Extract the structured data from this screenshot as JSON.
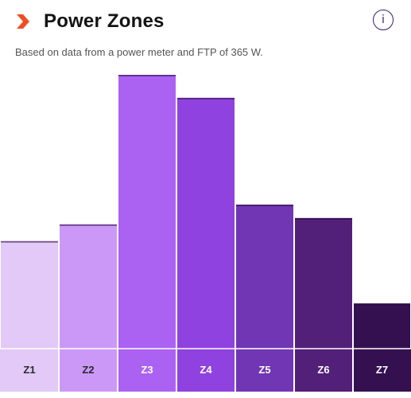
{
  "header": {
    "title": "Power Zones",
    "info_icon": "info-circle-icon",
    "logo_icon": "chevron-logo-icon"
  },
  "subtitle": "Based on data from a power meter and FTP of 365 W.",
  "colors": {
    "logo": "#f04e23",
    "info": "#3a1e6e",
    "zones": [
      "#e2c9f8",
      "#cb98f8",
      "#ab62f2",
      "#8f42df",
      "#7136b3",
      "#521f79",
      "#351050"
    ],
    "labels_dark": "#2a2a2a",
    "labels_light": "#ffffff"
  },
  "chart_data": {
    "type": "bar",
    "categories": [
      "Z1",
      "Z2",
      "Z3",
      "Z4",
      "Z5",
      "Z6",
      "Z7"
    ],
    "values": [
      39.3,
      45.4,
      100,
      91.6,
      52.6,
      47.7,
      16.5
    ],
    "ylim": [
      0,
      100
    ],
    "grid": false,
    "legend": "none"
  }
}
